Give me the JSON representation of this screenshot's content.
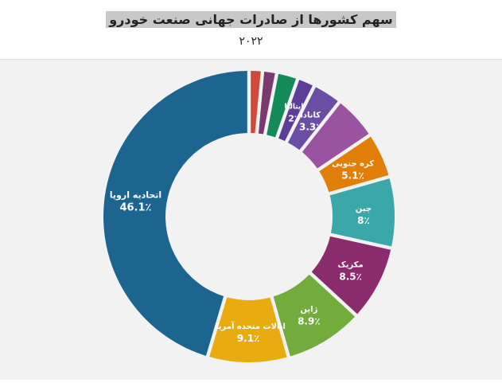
{
  "chart_data": {
    "type": "pie",
    "donut": true,
    "title": "سهم کشورها از صادرات جهانی صنعت خودرو",
    "subtitle": "۲۰۲۲",
    "slices": [
      {
        "label": "",
        "value_label": "",
        "value": 1.5,
        "color": "#d04a3c"
      },
      {
        "label": "",
        "value_label": "",
        "value": 1.6,
        "color": "#7b3a6f"
      },
      {
        "label": "",
        "value_label": "",
        "value": 2.4,
        "color": "#148a58"
      },
      {
        "label": "ایتالیا",
        "value_label": "2٪",
        "value": 2.0,
        "color": "#5c3e98"
      },
      {
        "label": "کانادا",
        "value_label": "3.3٪",
        "value": 3.3,
        "color": "#6a4ea4"
      },
      {
        "label": "",
        "value_label": "",
        "value": 5.0,
        "color": "#9a53a0"
      },
      {
        "label": "کره جنوبی",
        "value_label": "5.1٪",
        "value": 5.1,
        "color": "#e07e07"
      },
      {
        "label": "چین",
        "value_label": "8٪",
        "value": 8.0,
        "color": "#3aa8a8"
      },
      {
        "label": "مکزیک",
        "value_label": "8.5٪",
        "value": 8.5,
        "color": "#8a2c6c"
      },
      {
        "label": "ژاپن",
        "value_label": "8.9٪",
        "value": 8.9,
        "color": "#72ac3c"
      },
      {
        "label": "ایالات متحده آمریکا",
        "value_label": "9.1٪",
        "value": 9.1,
        "color": "#e8ac10"
      },
      {
        "label": "اتحادیه اروپا",
        "value_label": "46.1٪",
        "value": 46.1,
        "color": "#1d6591"
      }
    ]
  }
}
